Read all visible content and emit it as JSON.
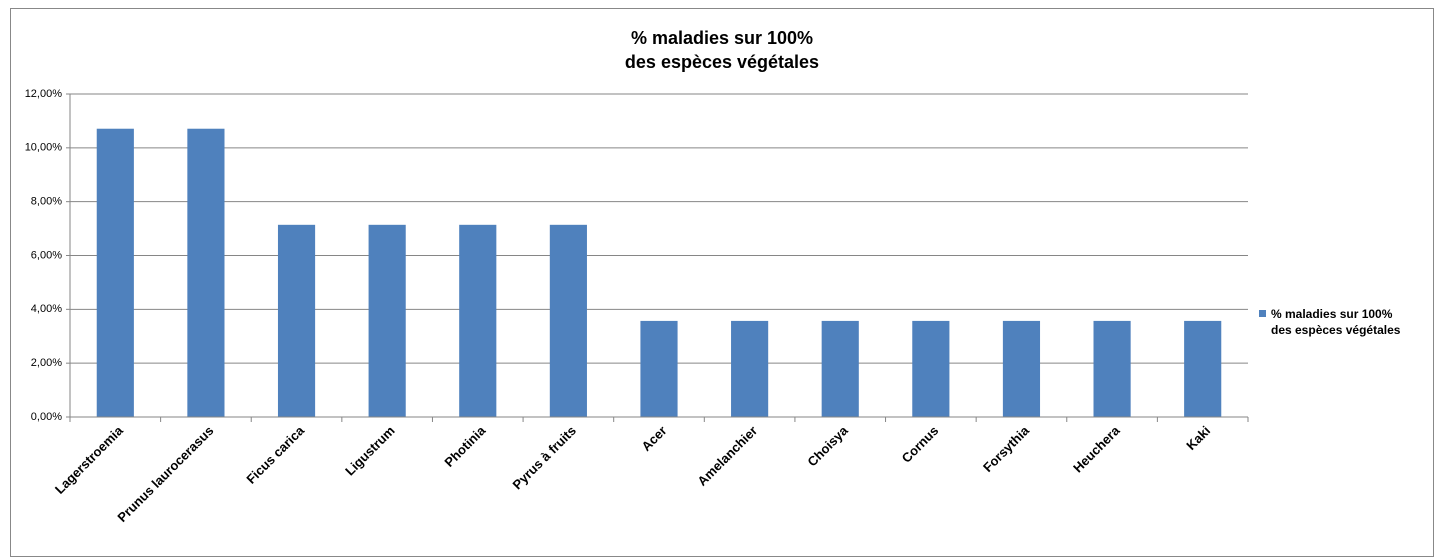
{
  "chart_data": {
    "type": "bar",
    "title": "% maladies sur 100% des espèces végétales",
    "categories": [
      "Lagerstroemia",
      "Prunus laurocerasus",
      "Ficus carica",
      "Ligustrum",
      "Photinia",
      "Pyrus à fruits",
      "Acer",
      "Amelanchier",
      "Choisya",
      "Cornus",
      "Forsythia",
      "Heuchera",
      "Kaki"
    ],
    "series": [
      {
        "name": "% maladies sur 100% des espèces végétales",
        "color": "#4f81bd",
        "values": [
          10.71,
          10.71,
          7.14,
          7.14,
          7.14,
          7.14,
          3.57,
          3.57,
          3.57,
          3.57,
          3.57,
          3.57,
          3.57
        ]
      }
    ],
    "ylim": [
      0,
      12
    ],
    "yticks": [
      {
        "value": 0,
        "label": "0,00%"
      },
      {
        "value": 2,
        "label": "2,00%"
      },
      {
        "value": 4,
        "label": "4,00%"
      },
      {
        "value": 6,
        "label": "6,00%"
      },
      {
        "value": 8,
        "label": "8,00%"
      },
      {
        "value": 10,
        "label": "10,00%"
      },
      {
        "value": 12,
        "label": "12,00%"
      }
    ],
    "grid": true,
    "legend": "right"
  }
}
